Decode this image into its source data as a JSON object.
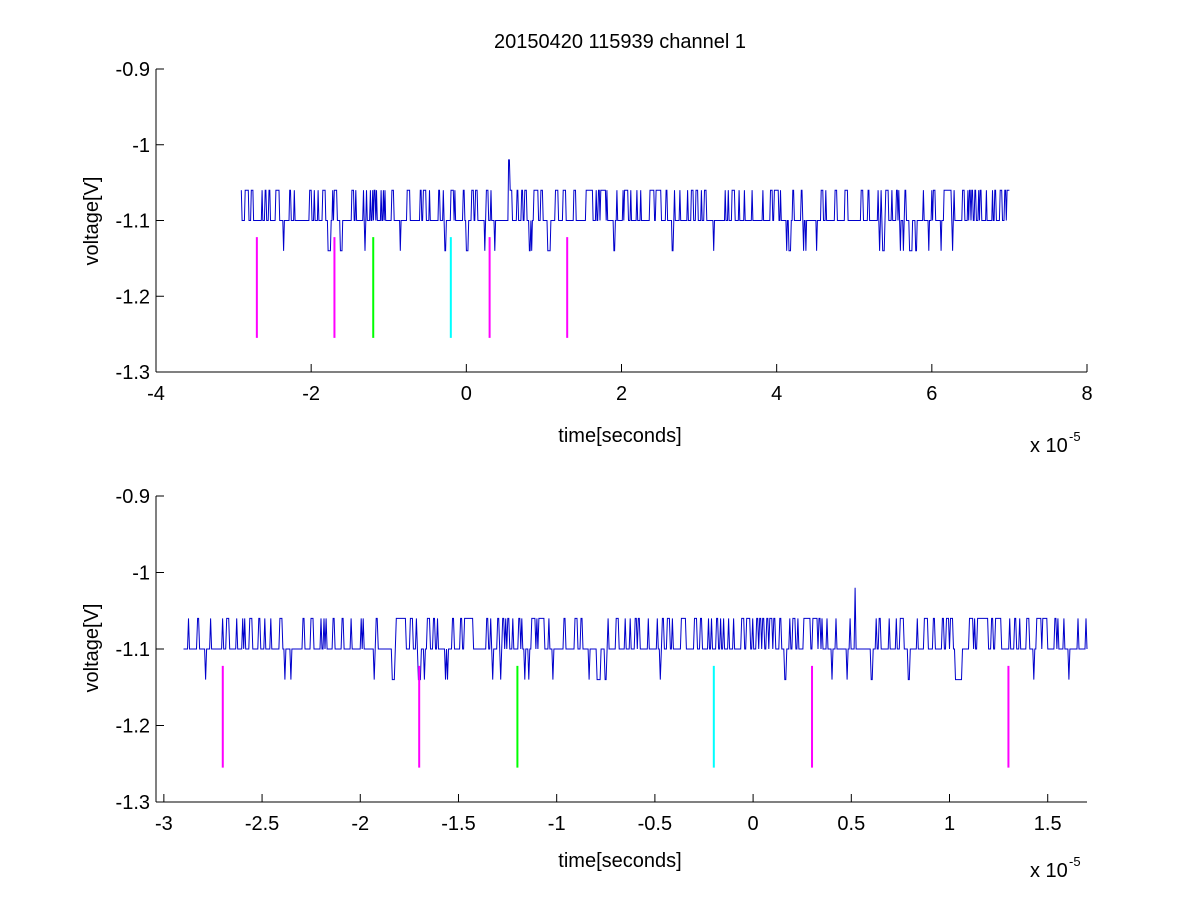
{
  "figure_title": "20150420 115939 channel 1",
  "chart_data": [
    {
      "type": "line",
      "title": "20150420 115939 channel 1",
      "xlabel": "time[seconds]",
      "ylabel": "voltage[V]",
      "x_scale_label": "x 10",
      "x_scale_exponent": "-5",
      "xlim": [
        -4,
        8
      ],
      "ylim": [
        -1.3,
        -0.9
      ],
      "x_ticks": [
        -4,
        -2,
        0,
        2,
        4,
        6,
        8
      ],
      "x_tick_labels": [
        "-4",
        "-2",
        "0",
        "2",
        "4",
        "6",
        "8"
      ],
      "y_ticks": [
        -1.3,
        -1.2,
        -1.1,
        -1.0,
        -0.9
      ],
      "y_tick_labels": [
        "-1.3",
        "-1.2",
        "-1.1",
        "-1",
        "-0.9"
      ],
      "grid": false,
      "signal": {
        "color": "#0000cc",
        "x_range": [
          -2.9,
          7.0
        ],
        "baseline": -1.1,
        "high_level": -1.06,
        "low_level": -1.14,
        "peak": {
          "x": 0.55,
          "y": -1.02
        }
      },
      "markers": [
        {
          "x": -2.7,
          "y": [
            -1.255,
            -1.122
          ],
          "color": "#ff00ff"
        },
        {
          "x": -1.7,
          "y": [
            -1.255,
            -1.122
          ],
          "color": "#ff00ff"
        },
        {
          "x": -1.2,
          "y": [
            -1.255,
            -1.122
          ],
          "color": "#00ff00"
        },
        {
          "x": -0.2,
          "y": [
            -1.255,
            -1.122
          ],
          "color": "#00ffff"
        },
        {
          "x": 0.3,
          "y": [
            -1.255,
            -1.122
          ],
          "color": "#ff00ff"
        },
        {
          "x": 1.3,
          "y": [
            -1.255,
            -1.122
          ],
          "color": "#ff00ff"
        }
      ]
    },
    {
      "type": "line",
      "title": "",
      "xlabel": "time[seconds]",
      "ylabel": "voltage[V]",
      "x_scale_label": "x 10",
      "x_scale_exponent": "-5",
      "xlim": [
        -3.04,
        1.7
      ],
      "ylim": [
        -1.3,
        -0.9
      ],
      "x_ticks": [
        -3,
        -2.5,
        -2,
        -1.5,
        -1,
        -0.5,
        0,
        0.5,
        1,
        1.5
      ],
      "x_tick_labels": [
        "-3",
        "-2.5",
        "-2",
        "-1.5",
        "-1",
        "-0.5",
        "0",
        "0.5",
        "1",
        "1.5"
      ],
      "y_ticks": [
        -1.3,
        -1.2,
        -1.1,
        -1.0,
        -0.9
      ],
      "y_tick_labels": [
        "-1.3",
        "-1.2",
        "-1.1",
        "-1",
        "-0.9"
      ],
      "grid": false,
      "signal": {
        "color": "#0000cc",
        "x_range": [
          -2.9,
          1.7
        ],
        "baseline": -1.1,
        "high_level": -1.06,
        "low_level": -1.14,
        "peak": {
          "x": 0.52,
          "y": -1.02
        }
      },
      "markers": [
        {
          "x": -2.7,
          "y": [
            -1.255,
            -1.122
          ],
          "color": "#ff00ff"
        },
        {
          "x": -1.7,
          "y": [
            -1.255,
            -1.122
          ],
          "color": "#ff00ff"
        },
        {
          "x": -1.2,
          "y": [
            -1.255,
            -1.122
          ],
          "color": "#00ff00"
        },
        {
          "x": -0.2,
          "y": [
            -1.255,
            -1.122
          ],
          "color": "#00ffff"
        },
        {
          "x": 0.3,
          "y": [
            -1.255,
            -1.122
          ],
          "color": "#ff00ff"
        },
        {
          "x": 1.3,
          "y": [
            -1.255,
            -1.122
          ],
          "color": "#ff00ff"
        }
      ]
    }
  ]
}
